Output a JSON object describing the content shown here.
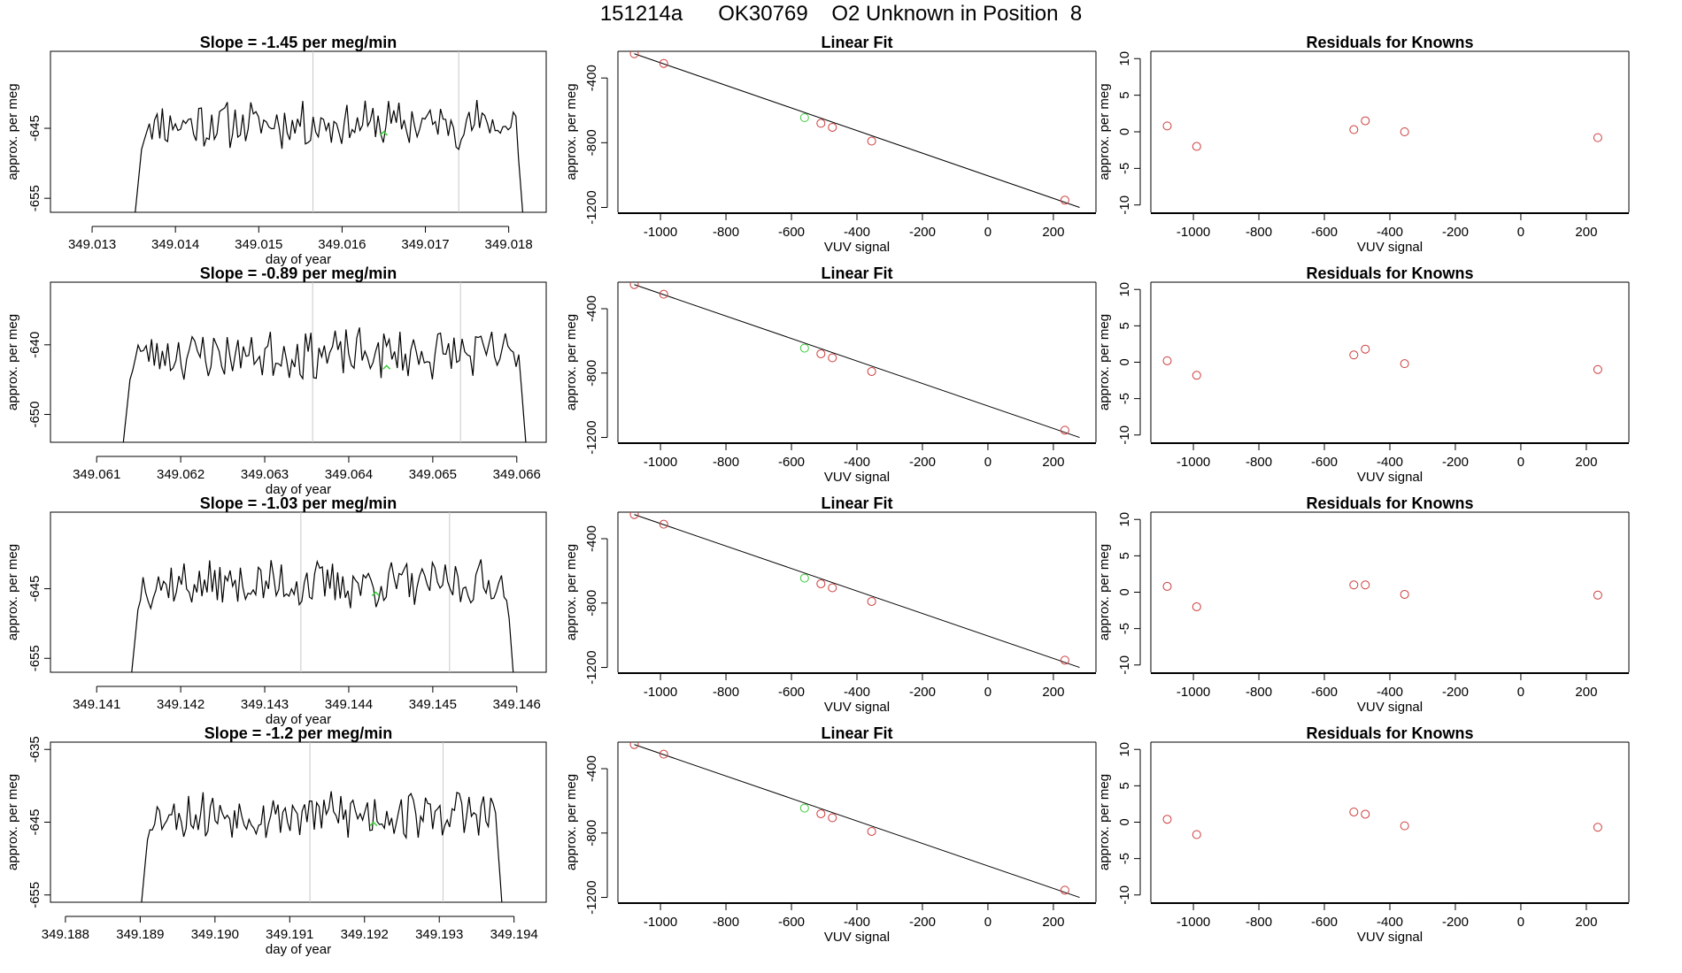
{
  "page_title": "151214a      OK30769    O2 Unknown in Position  8",
  "colors": {
    "line": "#000000",
    "known_point": "#cd3b3b",
    "unknown_point": "#3ccf3c",
    "marker": "#c8c8c8",
    "axis": "#000000"
  },
  "chart_data": [
    {
      "type": "line",
      "row": 1,
      "title": "Slope =  -1.45  per meg/min",
      "xlabel": "day of year",
      "ylabel": "approx. per meg",
      "xlim": [
        349.0125,
        349.01845
      ],
      "ylim": [
        -657,
        -634
      ],
      "xticks": [
        349.013,
        349.014,
        349.015,
        349.016,
        349.017,
        349.018
      ],
      "xtick_labels": [
        "349.013",
        "349.014",
        "349.015",
        "349.016",
        "349.017",
        "349.018"
      ],
      "yticks": [
        -645,
        -655
      ],
      "ytick_labels": [
        "-645",
        "-655"
      ],
      "trace_start": 349.0135,
      "trace_end": 349.01818,
      "trace_seed": 11,
      "markers": [
        349.01565,
        349.0174
      ],
      "unknown_point": {
        "x": 349.0165,
        "y": -646
      }
    },
    {
      "type": "line",
      "row": 2,
      "title": "Slope =  -0.89  per meg/min",
      "xlabel": "day of year",
      "ylabel": "approx. per meg",
      "xlim": [
        349.06045,
        349.06635
      ],
      "ylim": [
        -654,
        -631
      ],
      "xticks": [
        349.061,
        349.062,
        349.063,
        349.064,
        349.065,
        349.066
      ],
      "xtick_labels": [
        "349.061",
        "349.062",
        "349.063",
        "349.064",
        "349.065",
        "349.066"
      ],
      "yticks": [
        -640,
        -650
      ],
      "ytick_labels": [
        "-640",
        "-650"
      ],
      "trace_start": 349.0613,
      "trace_end": 349.06612,
      "trace_seed": 23,
      "markers": [
        349.06357,
        349.06533
      ],
      "unknown_point": {
        "x": 349.06445,
        "y": -643.5
      }
    },
    {
      "type": "line",
      "row": 3,
      "title": "Slope =  -1.03  per meg/min",
      "xlabel": "day of year",
      "ylabel": "approx. per meg",
      "xlim": [
        349.14045,
        349.14635
      ],
      "ylim": [
        -657,
        -634
      ],
      "xticks": [
        349.141,
        349.142,
        349.143,
        349.144,
        349.145,
        349.146
      ],
      "xtick_labels": [
        "349.141",
        "349.142",
        "349.143",
        "349.144",
        "349.145",
        "349.146"
      ],
      "yticks": [
        -645,
        -655
      ],
      "ytick_labels": [
        "-645",
        "-655"
      ],
      "trace_start": 349.1414,
      "trace_end": 349.14597,
      "trace_seed": 37,
      "markers": [
        349.14343,
        349.1452
      ],
      "unknown_point": {
        "x": 349.14432,
        "y": -646
      }
    },
    {
      "type": "line",
      "row": 4,
      "title": "Slope =  -1.2  per meg/min",
      "xlabel": "day of year",
      "ylabel": "approx. per meg",
      "xlim": [
        349.1878,
        349.19443
      ],
      "ylim": [
        -656,
        -634
      ],
      "xticks": [
        349.188,
        349.189,
        349.19,
        349.191,
        349.192,
        349.193,
        349.194
      ],
      "xtick_labels": [
        "349.188",
        "349.189",
        "349.190",
        "349.191",
        "349.192",
        "349.193",
        "349.194"
      ],
      "yticks": [
        -635,
        -645,
        -655
      ],
      "ytick_labels": [
        "-635",
        "-645",
        "-655"
      ],
      "trace_start": 349.189,
      "trace_end": 349.19385,
      "trace_seed": 53,
      "markers": [
        349.19127,
        349.19305
      ],
      "unknown_point": {
        "x": 349.19212,
        "y": -645.5
      }
    },
    {
      "type": "scatter",
      "row": 1,
      "title": "Linear Fit",
      "xlabel": "VUV signal",
      "ylabel": "approx. per meg",
      "xlim": [
        -1130,
        330
      ],
      "ylim": [
        -1230,
        -235
      ],
      "xticks": [
        -1000,
        -800,
        -600,
        -400,
        -200,
        0,
        200
      ],
      "xtick_labels": [
        "-1000",
        "-800",
        "-600",
        "-400",
        "-200",
        "0",
        "200"
      ],
      "yticks": [
        -400,
        -800,
        -1200
      ],
      "ytick_labels": [
        "-400",
        "-800",
        "-1200"
      ],
      "known": [
        [
          -1080,
          -250
        ],
        [
          -990,
          -310
        ],
        [
          -510,
          -680
        ],
        [
          -475,
          -705
        ],
        [
          -355,
          -790
        ],
        [
          235,
          -1155
        ]
      ],
      "unknown": [
        [
          -560,
          -645
        ]
      ],
      "fit_line": [
        [
          -1080,
          -250
        ],
        [
          280,
          -1200
        ]
      ]
    },
    {
      "type": "scatter",
      "row": 2,
      "title": "Linear Fit",
      "xlabel": "VUV signal",
      "ylabel": "approx. per meg",
      "xlim": [
        -1130,
        330
      ],
      "ylim": [
        -1230,
        -235
      ],
      "xticks": [
        -1000,
        -800,
        -600,
        -400,
        -200,
        0,
        200
      ],
      "xtick_labels": [
        "-1000",
        "-800",
        "-600",
        "-400",
        "-200",
        "0",
        "200"
      ],
      "yticks": [
        -400,
        -800,
        -1200
      ],
      "ytick_labels": [
        "-400",
        "-800",
        "-1200"
      ],
      "known": [
        [
          -1080,
          -250
        ],
        [
          -990,
          -310
        ],
        [
          -510,
          -680
        ],
        [
          -475,
          -705
        ],
        [
          -355,
          -790
        ],
        [
          235,
          -1155
        ]
      ],
      "unknown": [
        [
          -560,
          -645
        ]
      ],
      "fit_line": [
        [
          -1080,
          -250
        ],
        [
          280,
          -1200
        ]
      ]
    },
    {
      "type": "scatter",
      "row": 3,
      "title": "Linear Fit",
      "xlabel": "VUV signal",
      "ylabel": "approx. per meg",
      "xlim": [
        -1130,
        330
      ],
      "ylim": [
        -1230,
        -235
      ],
      "xticks": [
        -1000,
        -800,
        -600,
        -400,
        -200,
        0,
        200
      ],
      "xtick_labels": [
        "-1000",
        "-800",
        "-600",
        "-400",
        "-200",
        "0",
        "200"
      ],
      "yticks": [
        -400,
        -800,
        -1200
      ],
      "ytick_labels": [
        "-400",
        "-800",
        "-1200"
      ],
      "known": [
        [
          -1080,
          -250
        ],
        [
          -990,
          -310
        ],
        [
          -510,
          -680
        ],
        [
          -475,
          -705
        ],
        [
          -355,
          -790
        ],
        [
          235,
          -1155
        ]
      ],
      "unknown": [
        [
          -560,
          -645
        ]
      ],
      "fit_line": [
        [
          -1080,
          -250
        ],
        [
          280,
          -1200
        ]
      ]
    },
    {
      "type": "scatter",
      "row": 4,
      "title": "Linear Fit",
      "xlabel": "VUV signal",
      "ylabel": "approx. per meg",
      "xlim": [
        -1130,
        330
      ],
      "ylim": [
        -1230,
        -235
      ],
      "xticks": [
        -1000,
        -800,
        -600,
        -400,
        -200,
        0,
        200
      ],
      "xtick_labels": [
        "-1000",
        "-800",
        "-600",
        "-400",
        "-200",
        "0",
        "200"
      ],
      "yticks": [
        -400,
        -800,
        -1200
      ],
      "ytick_labels": [
        "-400",
        "-800",
        "-1200"
      ],
      "known": [
        [
          -1080,
          -250
        ],
        [
          -990,
          -310
        ],
        [
          -510,
          -680
        ],
        [
          -475,
          -705
        ],
        [
          -355,
          -790
        ],
        [
          235,
          -1155
        ]
      ],
      "unknown": [
        [
          -560,
          -645
        ]
      ],
      "fit_line": [
        [
          -1080,
          -250
        ],
        [
          280,
          -1200
        ]
      ]
    },
    {
      "type": "scatter",
      "row": 1,
      "title": "Residuals for Knowns",
      "xlabel": "VUV signal",
      "ylabel": "approx. per meg",
      "xlim": [
        -1130,
        330
      ],
      "ylim": [
        -11,
        11
      ],
      "xticks": [
        -1000,
        -800,
        -600,
        -400,
        -200,
        0,
        200
      ],
      "xtick_labels": [
        "-1000",
        "-800",
        "-600",
        "-400",
        "-200",
        "0",
        "200"
      ],
      "yticks": [
        10,
        5,
        0,
        -5,
        -10
      ],
      "ytick_labels": [
        "10",
        "5",
        "0",
        "-5",
        "-10"
      ],
      "known": [
        [
          -1080,
          0.8
        ],
        [
          -990,
          -2.0
        ],
        [
          -510,
          0.3
        ],
        [
          -475,
          1.5
        ],
        [
          -355,
          0.0
        ],
        [
          235,
          -0.8
        ]
      ]
    },
    {
      "type": "scatter",
      "row": 2,
      "title": "Residuals for Knowns",
      "xlabel": "VUV signal",
      "ylabel": "approx. per meg",
      "xlim": [
        -1130,
        330
      ],
      "ylim": [
        -11,
        11
      ],
      "xticks": [
        -1000,
        -800,
        -600,
        -400,
        -200,
        0,
        200
      ],
      "xtick_labels": [
        "-1000",
        "-800",
        "-600",
        "-400",
        "-200",
        "0",
        "200"
      ],
      "yticks": [
        10,
        5,
        0,
        -5,
        -10
      ],
      "ytick_labels": [
        "10",
        "5",
        "0",
        "-5",
        "-10"
      ],
      "known": [
        [
          -1080,
          0.2
        ],
        [
          -990,
          -1.8
        ],
        [
          -510,
          1.0
        ],
        [
          -475,
          1.8
        ],
        [
          -355,
          -0.2
        ],
        [
          235,
          -1.0
        ]
      ]
    },
    {
      "type": "scatter",
      "row": 3,
      "title": "Residuals for Knowns",
      "xlabel": "VUV signal",
      "ylabel": "approx. per meg",
      "xlim": [
        -1130,
        330
      ],
      "ylim": [
        -11,
        11
      ],
      "xticks": [
        -1000,
        -800,
        -600,
        -400,
        -200,
        0,
        200
      ],
      "xtick_labels": [
        "-1000",
        "-800",
        "-600",
        "-400",
        "-200",
        "0",
        "200"
      ],
      "yticks": [
        10,
        5,
        0,
        -5,
        -10
      ],
      "ytick_labels": [
        "10",
        "5",
        "0",
        "-5",
        "-10"
      ],
      "known": [
        [
          -1080,
          0.8
        ],
        [
          -990,
          -2.0
        ],
        [
          -510,
          1.0
        ],
        [
          -475,
          1.0
        ],
        [
          -355,
          -0.3
        ],
        [
          235,
          -0.4
        ]
      ]
    },
    {
      "type": "scatter",
      "row": 4,
      "title": "Residuals for Knowns",
      "xlabel": "VUV signal",
      "ylabel": "approx. per meg",
      "xlim": [
        -1130,
        330
      ],
      "ylim": [
        -11,
        11
      ],
      "xticks": [
        -1000,
        -800,
        -600,
        -400,
        -200,
        0,
        200
      ],
      "xtick_labels": [
        "-1000",
        "-800",
        "-600",
        "-400",
        "-200",
        "0",
        "200"
      ],
      "yticks": [
        10,
        5,
        0,
        -5,
        -10
      ],
      "ytick_labels": [
        "10",
        "5",
        "0",
        "-5",
        "-10"
      ],
      "known": [
        [
          -1080,
          0.4
        ],
        [
          -990,
          -1.7
        ],
        [
          -510,
          1.4
        ],
        [
          -475,
          1.1
        ],
        [
          -355,
          -0.5
        ],
        [
          235,
          -0.7
        ]
      ]
    }
  ]
}
